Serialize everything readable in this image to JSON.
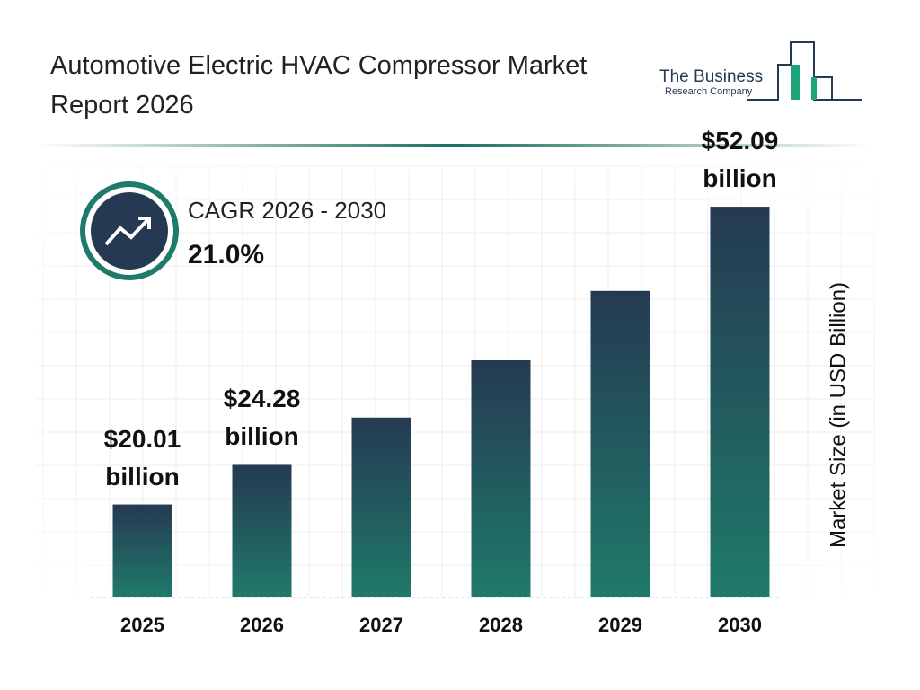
{
  "chart_data": {
    "type": "bar",
    "title": "Automotive Electric HVAC Compressor Market Report 2026",
    "logo": {
      "line1": "The Business",
      "line2": "Research Company"
    },
    "cagr_label": "CAGR 2026 - 2030",
    "cagr_value": "21.0%",
    "y_axis_label": "Market Size (in USD Billion)",
    "categories": [
      "2025",
      "2026",
      "2027",
      "2028",
      "2029",
      "2030"
    ],
    "values": [
      20.01,
      24.28,
      29.38,
      35.55,
      43.02,
      52.09
    ],
    "value_labels": [
      "$20.01 billion",
      "$24.28 billion",
      null,
      null,
      null,
      "$52.09 billion"
    ],
    "ylim": [
      10,
      55
    ],
    "color_top": "#253a52",
    "color_bottom": "#1f7a6a"
  }
}
